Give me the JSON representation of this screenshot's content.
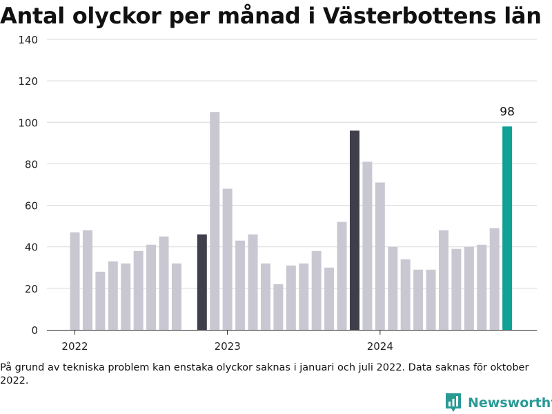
{
  "title": "Antal olyckor per månad i Västerbottens län",
  "footnote": "På grund av tekniska problem kan enstaka olyckor saknas i januari och juli 2022. Data saknas för oktober 2022.",
  "brand": {
    "name": "Newsworthy",
    "icon": "newsworthy-logo-icon",
    "color": "#2a9a95"
  },
  "chart_data": {
    "type": "bar",
    "title": "Antal olyckor per månad i Västerbottens län",
    "xlabel": "",
    "ylabel": "",
    "ylim": [
      0,
      140
    ],
    "yticks": [
      0,
      20,
      40,
      60,
      80,
      100,
      120,
      140
    ],
    "xticks": [
      {
        "label": "2022",
        "month": "2022-01"
      },
      {
        "label": "2023",
        "month": "2023-01"
      },
      {
        "label": "2024",
        "month": "2024-01"
      }
    ],
    "grid": true,
    "legend": "none",
    "colors": {
      "default": "#c9c8d2",
      "highlight": "#3f3e4b",
      "latest": "#0fa295"
    },
    "categories": [
      "2022-01",
      "2022-02",
      "2022-03",
      "2022-04",
      "2022-05",
      "2022-06",
      "2022-07",
      "2022-08",
      "2022-09",
      "2022-10",
      "2022-11",
      "2022-12",
      "2023-01",
      "2023-02",
      "2023-03",
      "2023-04",
      "2023-05",
      "2023-06",
      "2023-07",
      "2023-08",
      "2023-09",
      "2023-10",
      "2023-11",
      "2023-12",
      "2024-01",
      "2024-02",
      "2024-03",
      "2024-04",
      "2024-05",
      "2024-06",
      "2024-07",
      "2024-08",
      "2024-09",
      "2024-10",
      "2024-11",
      "2024-12"
    ],
    "values": [
      47,
      48,
      28,
      33,
      32,
      38,
      41,
      45,
      32,
      null,
      46,
      105,
      68,
      43,
      46,
      32,
      22,
      31,
      32,
      38,
      30,
      52,
      96,
      81,
      71,
      40,
      34,
      29,
      29,
      48,
      39,
      40,
      41,
      49,
      98,
      null
    ],
    "highlight": [
      "2022-11",
      "2023-11"
    ],
    "latest": "2024-11",
    "annotations": [
      {
        "month": "2024-11",
        "text": "98"
      }
    ]
  }
}
